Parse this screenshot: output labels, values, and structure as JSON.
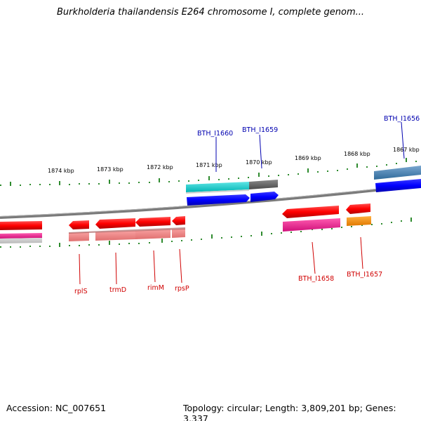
{
  "title": "Burkholderia thailandensis E264 chromosome I, complete genom...",
  "footer": {
    "accession": "Accession: NC_007651",
    "topology": "Topology: circular; Length: 3,809,201 bp; Genes: 3,337"
  },
  "ticks": [
    "1874 kbp",
    "1873 kbp",
    "1872 kbp",
    "1871 kbp",
    "1870 kbp",
    "1869 kbp",
    "1868 kbp",
    "1867 kbp"
  ],
  "gene_labels_top": [
    "BTH_I1660",
    "BTH_I1659",
    "BTH_I1656"
  ],
  "gene_labels_bottom": [
    "rplS",
    "trmD",
    "rimM",
    "rpsP",
    "BTH_I1658",
    "BTH_I1657"
  ],
  "colors": {
    "backbone": "#808080",
    "tick": "#228b22",
    "cds_forward": "#0000ff",
    "cds_reverse": "#ff0000",
    "cyan_track": "#00c8c8",
    "gray_track": "#606060",
    "steel_track": "#4682b4",
    "magenta_track": "#ff1493",
    "salmon_track": "#f08080",
    "orange_track": "#ff8c00"
  }
}
